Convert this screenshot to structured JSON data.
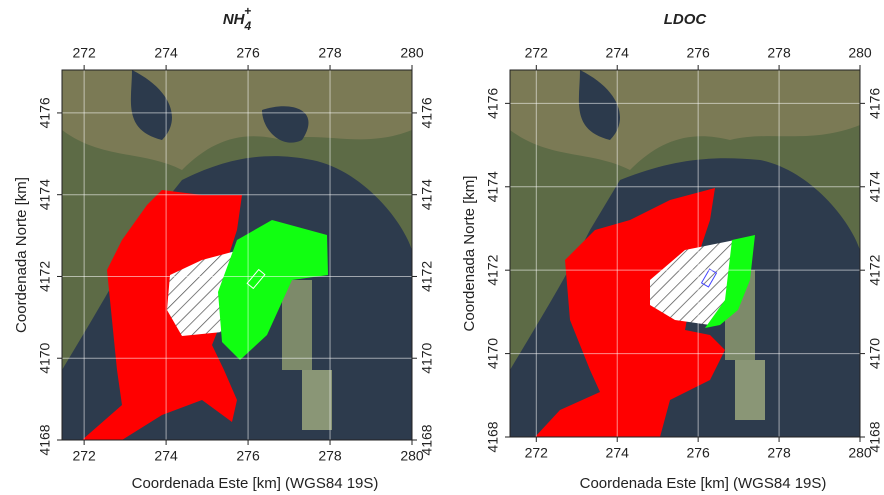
{
  "panels": [
    {
      "title": {
        "base": "NH",
        "sub": "4",
        "sup": "+"
      },
      "xlabel": "Coordenada Este [km] (WGS84 19S)",
      "ylabel": "Coordenada Norte [km]",
      "xlim": [
        271.46,
        280
      ],
      "ylim": [
        4168,
        4177.05
      ],
      "xticks": [
        272,
        274,
        276,
        278,
        280
      ],
      "yticks": [
        4168,
        4170,
        4172,
        4174,
        4176
      ]
    },
    {
      "title": {
        "base": "LDOC"
      },
      "xlabel": "Coordenada Este [km] (WGS84 19S)",
      "ylabel": "Coordenada Norte [km]",
      "xlim": [
        271.35,
        280
      ],
      "ylim": [
        4168,
        4176.8
      ],
      "xticks": [
        272,
        274,
        276,
        278,
        280
      ],
      "yticks": [
        4168,
        4170,
        4172,
        4174,
        4176
      ]
    }
  ]
}
